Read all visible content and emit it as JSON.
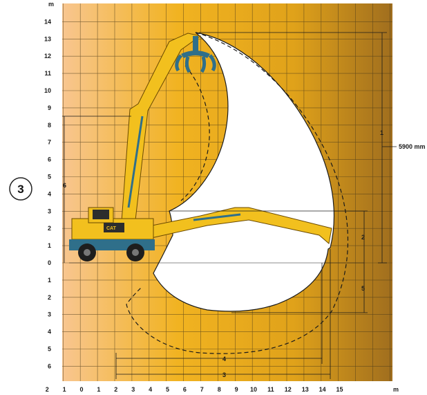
{
  "badge": "3",
  "units": {
    "y_top": "m",
    "x_right": "m"
  },
  "y_ticks_up": [
    "14",
    "13",
    "12",
    "11",
    "10",
    "9",
    "8",
    "7",
    "6",
    "5",
    "4",
    "3",
    "2",
    "1",
    "0"
  ],
  "y_ticks_down": [
    "1",
    "2",
    "3",
    "4",
    "5",
    "6"
  ],
  "x_ticks": [
    "2",
    "1",
    "0",
    "1",
    "2",
    "3",
    "4",
    "5",
    "6",
    "7",
    "8",
    "9",
    "10",
    "11",
    "12",
    "13",
    "14",
    "15"
  ],
  "dimensions": {
    "d1": "1",
    "d2": "2",
    "d3": "3",
    "d4": "4",
    "d5": "5",
    "d6": "6",
    "reach_value": "5900 mm"
  },
  "colors": {
    "bg_light": "#f6c08a",
    "bg_mid": "#f0b818",
    "bg_dark": "#a8741c",
    "machine": "#f2c01e",
    "undercarriage": "#2f6f8a"
  },
  "icons": [
    "material-handler-machine",
    "orange-peel-grapple"
  ]
}
